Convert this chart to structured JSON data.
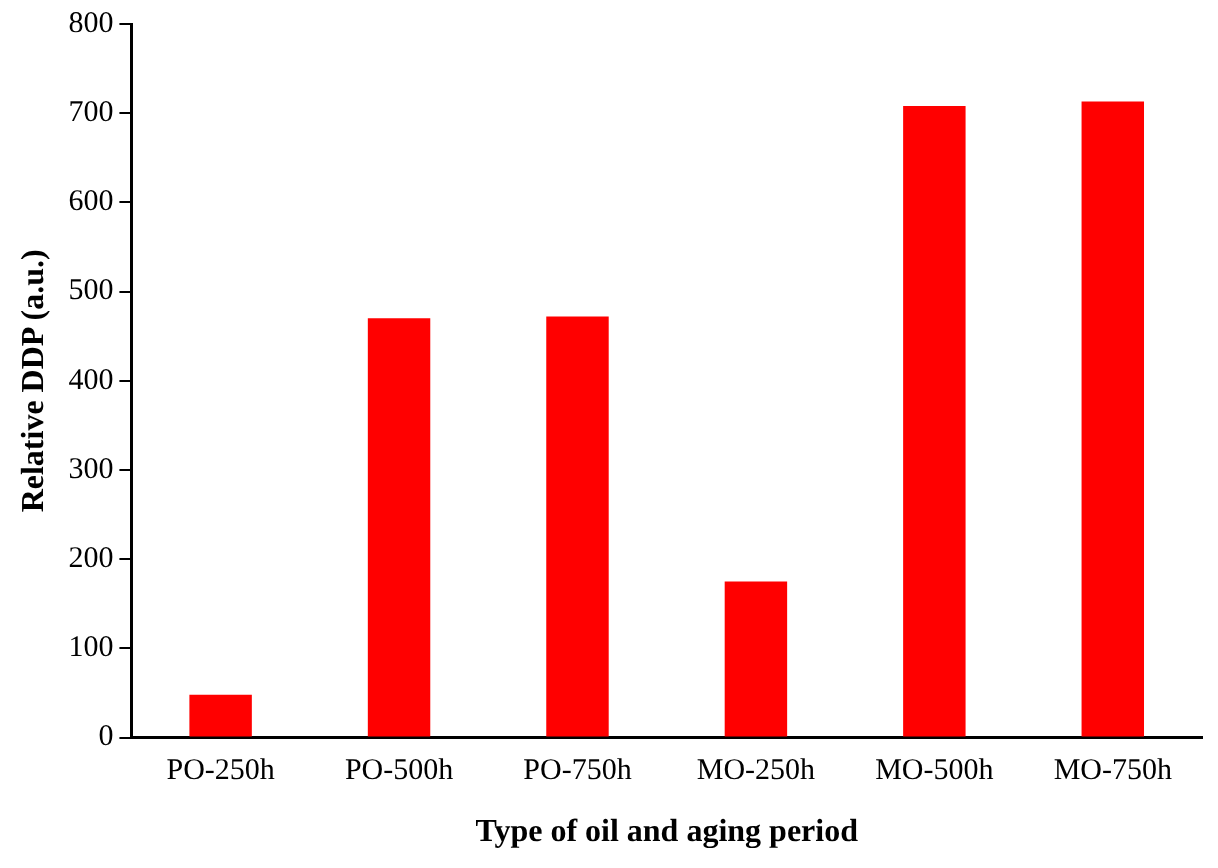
{
  "chart_data": {
    "type": "bar",
    "xlabel": "Type of oil and aging period",
    "ylabel": "Relative DDP (a.u.)",
    "categories": [
      "PO-250h",
      "PO-500h",
      "PO-750h",
      "MO-250h",
      "MO-500h",
      "MO-750h"
    ],
    "values": [
      48,
      470,
      472,
      175,
      708,
      713
    ],
    "color": "#ff0000",
    "ylim": [
      0,
      800
    ],
    "yticks": [
      0,
      100,
      200,
      300,
      400,
      500,
      600,
      700,
      800
    ],
    "grid": false,
    "legend": false
  }
}
